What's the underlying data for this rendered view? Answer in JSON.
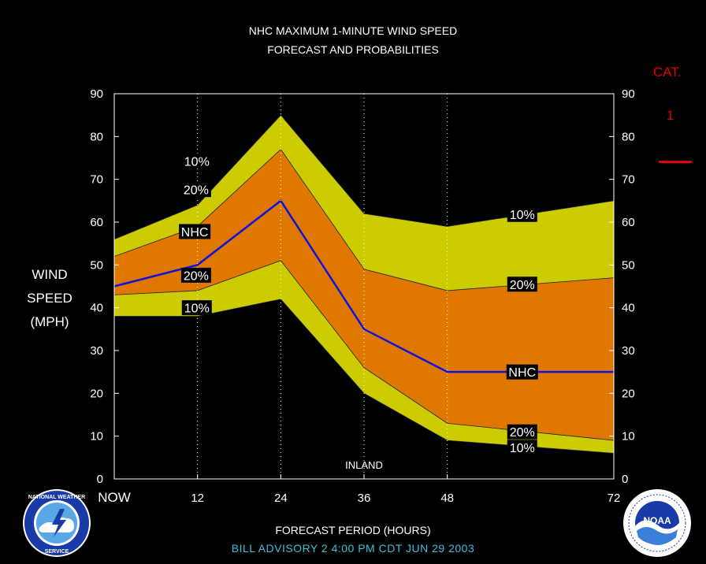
{
  "title_line1": "NHC MAXIMUM 1-MINUTE WIND SPEED",
  "title_line2": "FORECAST AND PROBABILITIES",
  "ylabel_lines": [
    "WIND",
    "SPEED",
    "(MPH)"
  ],
  "xlabel": "FORECAST PERIOD (HOURS)",
  "footer": "BILL    ADVISORY  2  4:00  PM  CDT  JUN  29  2003",
  "category": {
    "title": "CAT.",
    "value": "1",
    "color": "#e00000"
  },
  "inland_label": "INLAND",
  "logos": {
    "left": {
      "icon": "nws-logo",
      "text": "NATIONAL WEATHER SERVICE"
    },
    "right": {
      "icon": "noaa-logo",
      "text": "NOAA",
      "ring_text": "NATIONAL OCEANIC AND ATMOSPHERIC ADMINISTRATION · U.S. DEPARTMENT OF COMMERCE"
    }
  },
  "colors": {
    "outer_band": "#cccc00",
    "inner_band": "#e07800",
    "nhc_line": "#1010e0",
    "frame": "#ffffff",
    "footer_text": "#36c3d8"
  },
  "chart_data": {
    "type": "area",
    "x": [
      0,
      12,
      24,
      36,
      48,
      72
    ],
    "x_tick_labels": [
      "NOW",
      "12",
      "24",
      "36",
      "48",
      "72"
    ],
    "xlim": [
      0,
      72
    ],
    "ylim": [
      0,
      90
    ],
    "y_ticks": [
      0,
      10,
      20,
      30,
      40,
      50,
      60,
      70,
      80,
      90
    ],
    "gridlines_x": [
      12,
      24,
      36,
      48
    ],
    "series": [
      {
        "name": "10%",
        "role": "upper",
        "values": [
          56,
          64,
          85,
          62,
          59,
          65
        ]
      },
      {
        "name": "20%",
        "role": "upper",
        "values": [
          52,
          59,
          77,
          49,
          44,
          47
        ]
      },
      {
        "name": "NHC",
        "role": "forecast",
        "values": [
          45,
          50,
          65,
          35,
          25,
          25
        ]
      },
      {
        "name": "20%",
        "role": "lower",
        "values": [
          43,
          44,
          51,
          26,
          13,
          9
        ]
      },
      {
        "name": "10%",
        "role": "lower",
        "values": [
          38,
          38,
          42,
          20,
          9,
          6
        ]
      }
    ],
    "labels": [
      {
        "text": "10%",
        "x": 11.9,
        "y": 74.3
      },
      {
        "text": "20%",
        "x": 11.8,
        "y": 67.6
      },
      {
        "text": "NHC",
        "x": 11.6,
        "y": 57.8
      },
      {
        "text": "20%",
        "x": 11.8,
        "y": 47.6
      },
      {
        "text": "10%",
        "x": 11.9,
        "y": 40.0
      },
      {
        "text": "10%",
        "x": 58.8,
        "y": 61.8
      },
      {
        "text": "20%",
        "x": 58.8,
        "y": 45.5
      },
      {
        "text": "NHC",
        "x": 58.8,
        "y": 25.0
      },
      {
        "text": "20%",
        "x": 58.8,
        "y": 11.0
      },
      {
        "text": "10%",
        "x": 58.8,
        "y": 7.4
      }
    ]
  }
}
